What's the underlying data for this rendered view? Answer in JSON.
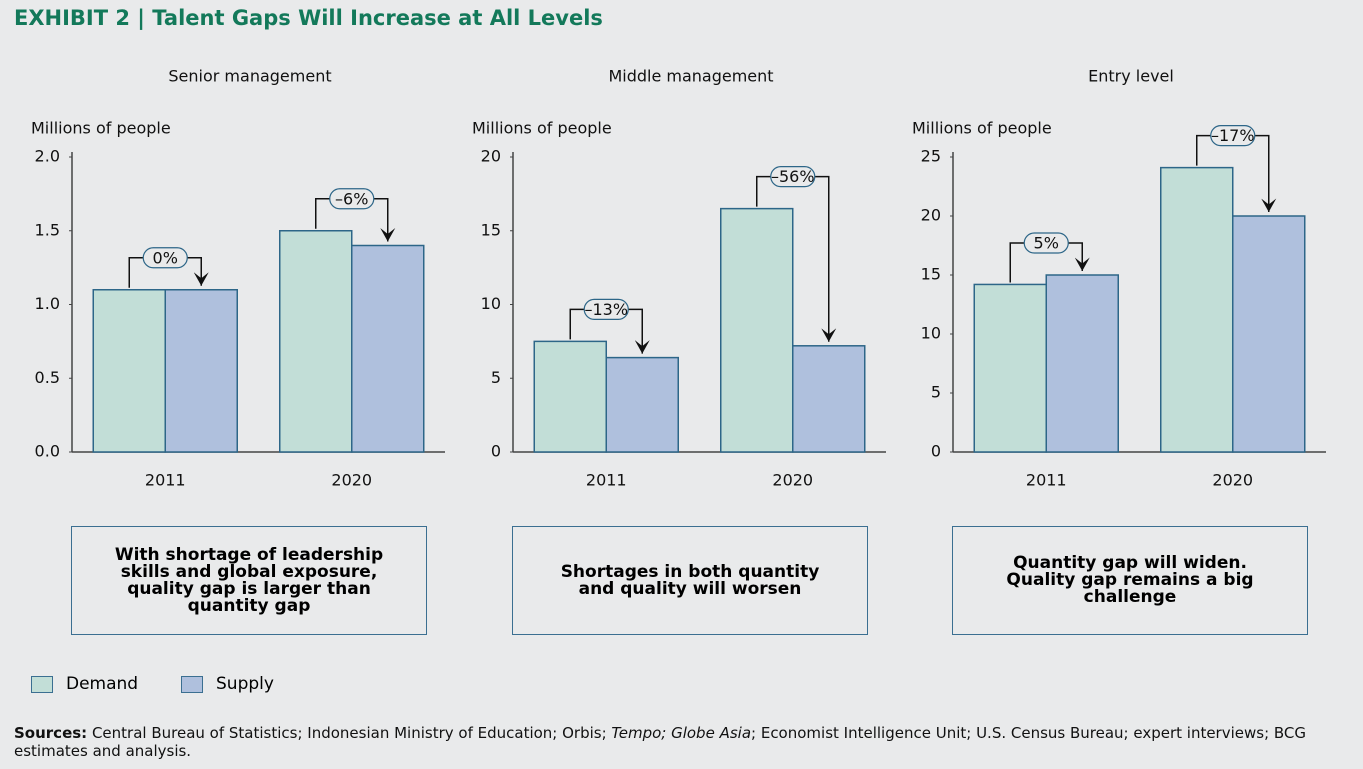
{
  "title": "EXHIBIT 2 | Talent Gaps Will Increase at All Levels",
  "legend": [
    {
      "name": "Demand",
      "color": "#c2ded7"
    },
    {
      "name": "Supply",
      "color": "#afc0dd"
    }
  ],
  "chart_data": [
    {
      "type": "bar",
      "title": "Senior management",
      "ylabel": "Millions of people",
      "categories": [
        "2011",
        "2020"
      ],
      "series": [
        {
          "values": [
            1.1,
            1.5
          ]
        },
        {
          "values": [
            1.1,
            1.4
          ]
        }
      ],
      "gap_labels": [
        "0%",
        "–6%"
      ],
      "ylim": [
        0,
        2
      ],
      "yticks": [
        {
          "value": 0,
          "label": "0.0"
        },
        0.5,
        {
          "value": 1,
          "label": "1.0"
        },
        1.5,
        {
          "value": 2,
          "label": "2.0"
        }
      ],
      "caption": "With shortage of leadership skills and global exposure, quality gap is larger than quantity gap"
    },
    {
      "type": "bar",
      "title": "Middle management",
      "ylabel": "Millions of people",
      "categories": [
        "2011",
        "2020"
      ],
      "series": [
        {
          "values": [
            7.5,
            16.5
          ]
        },
        {
          "values": [
            6.4,
            7.2
          ]
        }
      ],
      "gap_labels": [
        "–13%",
        "–56%"
      ],
      "ylim": [
        0,
        20
      ],
      "yticks": [
        0,
        5,
        10,
        15,
        20
      ],
      "caption": "Shortages in both quantity and quality will worsen"
    },
    {
      "type": "bar",
      "title": "Entry level",
      "ylabel": "Millions of people",
      "categories": [
        "2011",
        "2020"
      ],
      "series": [
        {
          "values": [
            14.2,
            24.1
          ]
        },
        {
          "values": [
            15.0,
            20.0
          ]
        }
      ],
      "gap_labels": [
        "5%",
        "–17%"
      ],
      "ylim": [
        0,
        25
      ],
      "yticks": [
        0,
        5,
        10,
        15,
        20,
        25
      ],
      "caption": "Quantity gap will widen. Quality gap remains a big challenge"
    }
  ],
  "sources": {
    "label": "Sources:",
    "parts": [
      " Central Bureau of Statistics; Indonesian Ministry of Education; Orbis; ",
      "Tempo; Globe Asia",
      "; Economist Intelligence Unit; U.S. Census Bureau; expert interviews; BCG estimates and analysis."
    ]
  }
}
